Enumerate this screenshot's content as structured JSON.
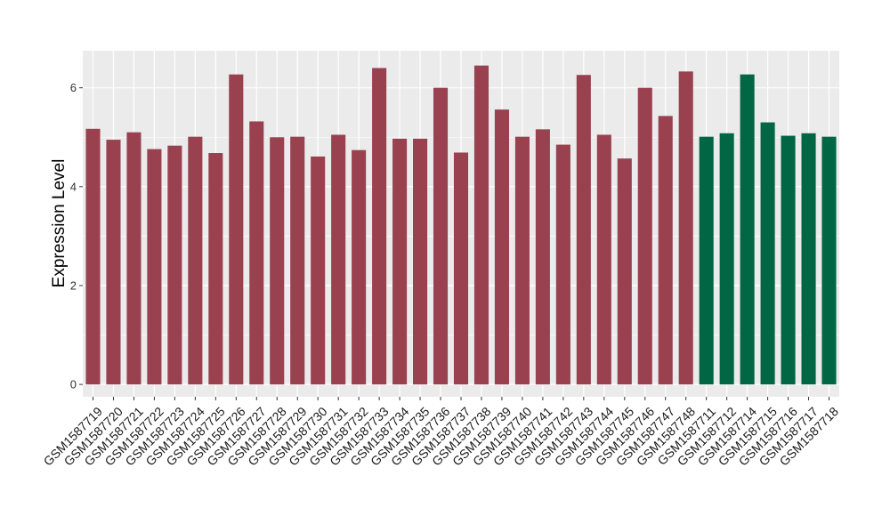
{
  "chart_data": {
    "type": "bar",
    "title": "",
    "xlabel": "",
    "ylabel": "Expression Level",
    "ylim": [
      -0.25,
      6.75
    ],
    "yticks": [
      0,
      2,
      4,
      6
    ],
    "grid": true,
    "legend": "none",
    "colors": {
      "group1": "#9a4150",
      "group2": "#006644",
      "panel": "#ebebeb",
      "gridline": "#ffffff"
    },
    "categories": [
      "GSM1587719",
      "GSM1587720",
      "GSM1587721",
      "GSM1587722",
      "GSM1587723",
      "GSM1587724",
      "GSM1587725",
      "GSM1587726",
      "GSM1587727",
      "GSM1587728",
      "GSM1587729",
      "GSM1587730",
      "GSM1587731",
      "GSM1587732",
      "GSM1587733",
      "GSM1587734",
      "GSM1587735",
      "GSM1587736",
      "GSM1587737",
      "GSM1587738",
      "GSM1587739",
      "GSM1587740",
      "GSM1587741",
      "GSM1587742",
      "GSM1587743",
      "GSM1587744",
      "GSM1587745",
      "GSM1587746",
      "GSM1587747",
      "GSM1587748",
      "GSM1587711",
      "GSM1587712",
      "GSM1587714",
      "GSM1587715",
      "GSM1587716",
      "GSM1587717",
      "GSM1587718"
    ],
    "values": [
      5.17,
      4.95,
      5.1,
      4.76,
      4.83,
      5.01,
      4.68,
      6.27,
      5.32,
      5.0,
      5.01,
      4.61,
      5.05,
      4.74,
      6.4,
      4.97,
      4.97,
      6.0,
      4.69,
      6.45,
      5.56,
      5.01,
      5.16,
      4.85,
      6.26,
      5.05,
      4.57,
      6.0,
      5.43,
      6.33,
      5.01,
      5.08,
      6.27,
      5.3,
      5.03,
      5.08,
      5.01
    ],
    "groups": [
      1,
      1,
      1,
      1,
      1,
      1,
      1,
      1,
      1,
      1,
      1,
      1,
      1,
      1,
      1,
      1,
      1,
      1,
      1,
      1,
      1,
      1,
      1,
      1,
      1,
      1,
      1,
      1,
      1,
      1,
      2,
      2,
      2,
      2,
      2,
      2,
      2
    ]
  }
}
